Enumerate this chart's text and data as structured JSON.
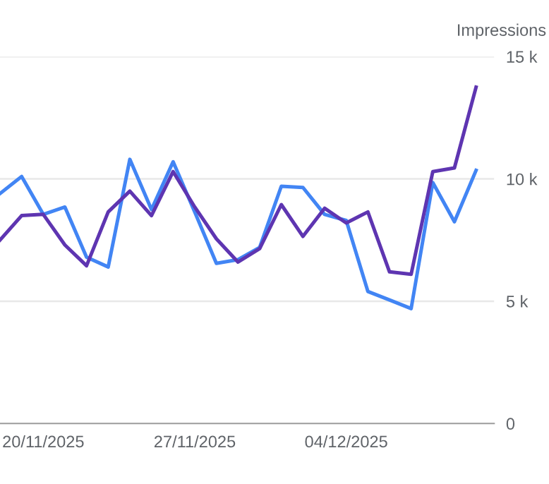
{
  "chart_data": {
    "type": "line",
    "ylabel": "Impressions",
    "x": [
      "2025-11-18",
      "2025-11-19",
      "2025-11-20",
      "2025-11-21",
      "2025-11-22",
      "2025-11-23",
      "2025-11-24",
      "2025-11-25",
      "2025-11-26",
      "2025-11-27",
      "2025-11-28",
      "2025-11-29",
      "2025-11-30",
      "2025-12-01",
      "2025-12-02",
      "2025-12-03",
      "2025-12-04",
      "2025-12-05",
      "2025-12-06",
      "2025-12-07",
      "2025-12-08",
      "2025-12-09",
      "2025-12-10"
    ],
    "series": [
      {
        "color": "#4285f4",
        "values": [
          9400,
          10100,
          8550,
          8850,
          6800,
          6400,
          10800,
          8750,
          10700,
          8650,
          6550,
          6700,
          7200,
          9700,
          9650,
          8550,
          8300,
          5400,
          5050,
          4700,
          9850,
          8250,
          10350
        ]
      },
      {
        "color": "#5e35b1",
        "values": [
          7500,
          8500,
          8550,
          7300,
          6450,
          8650,
          9500,
          8500,
          10300,
          8850,
          7550,
          6600,
          7150,
          8950,
          7650,
          8800,
          8200,
          8650,
          6200,
          6100,
          10300,
          10450,
          13750
        ]
      }
    ],
    "xlim": [
      "2025-11-18",
      "2025-12-10T20:00"
    ],
    "xticks": [
      {
        "value": "2025-11-20",
        "label": "20/11/2025"
      },
      {
        "value": "2025-11-27",
        "label": "27/11/2025"
      },
      {
        "value": "2025-12-04",
        "label": "04/12/2025"
      }
    ],
    "ylim": [
      0,
      15000
    ],
    "yticks": [
      {
        "value": 0,
        "label": "0"
      },
      {
        "value": 5000,
        "label": "5 k"
      },
      {
        "value": 10000,
        "label": "10 k"
      },
      {
        "value": 15000,
        "label": "15 k"
      }
    ],
    "grid": "y",
    "legend": false,
    "marker": "none",
    "line_style": "solid"
  }
}
